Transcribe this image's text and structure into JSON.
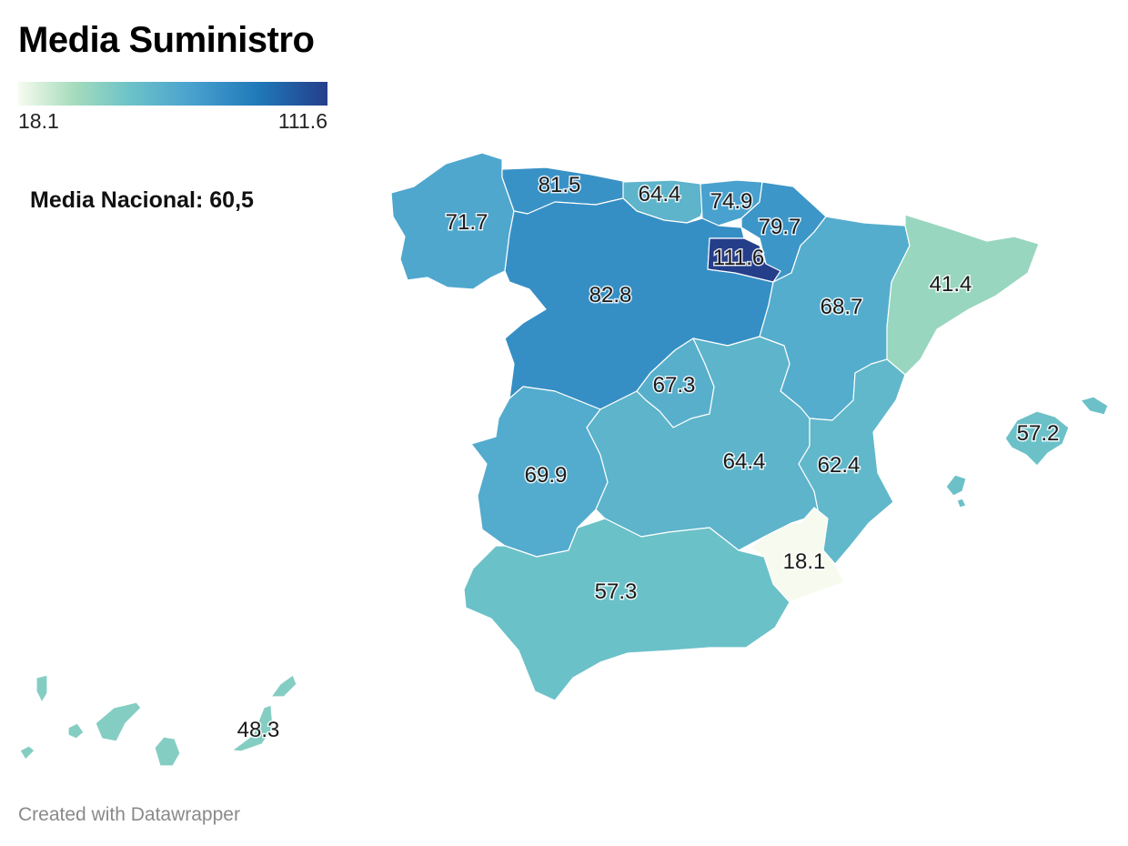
{
  "title": "Media Suministro",
  "legend": {
    "min_label": "18.1",
    "max_label": "111.6",
    "min": 18.1,
    "max": 111.6,
    "colors": [
      "#f7fbef",
      "#a6dcbd",
      "#6fc4c7",
      "#4aa3cf",
      "#1f78b8",
      "#253e8a"
    ]
  },
  "note": "Media Nacional: 60,5",
  "credit": "Created with Datawrapper",
  "regions": [
    {
      "id": "galicia",
      "value": 71.7,
      "label": "71.7"
    },
    {
      "id": "asturias",
      "value": 81.5,
      "label": "81.5"
    },
    {
      "id": "cantabria",
      "value": 64.4,
      "label": "64.4"
    },
    {
      "id": "pais-vasco",
      "value": 74.9,
      "label": "74.9"
    },
    {
      "id": "navarra",
      "value": 79.7,
      "label": "79.7"
    },
    {
      "id": "la-rioja",
      "value": 111.6,
      "label": "111.6"
    },
    {
      "id": "castilla-leon",
      "value": 82.8,
      "label": "82.8"
    },
    {
      "id": "aragon",
      "value": 68.7,
      "label": "68.7"
    },
    {
      "id": "cataluna",
      "value": 41.4,
      "label": "41.4"
    },
    {
      "id": "madrid",
      "value": 67.3,
      "label": "67.3"
    },
    {
      "id": "extremadura",
      "value": 69.9,
      "label": "69.9"
    },
    {
      "id": "castilla-la-mancha",
      "value": 64.4,
      "label": "64.4"
    },
    {
      "id": "valencia",
      "value": 62.4,
      "label": "62.4"
    },
    {
      "id": "murcia",
      "value": 18.1,
      "label": "18.1"
    },
    {
      "id": "andalucia",
      "value": 57.3,
      "label": "57.3"
    },
    {
      "id": "baleares",
      "value": 57.2,
      "label": "57.2"
    },
    {
      "id": "canarias",
      "value": 48.3,
      "label": "48.3"
    }
  ]
}
